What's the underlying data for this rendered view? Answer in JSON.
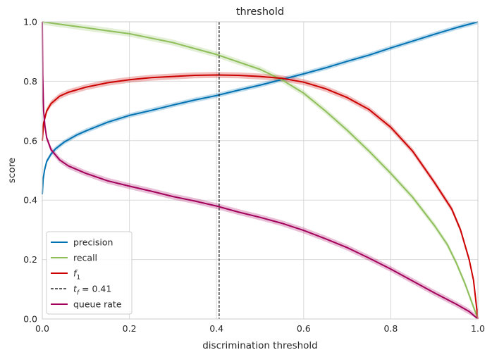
{
  "chart_data": {
    "type": "line",
    "title": "threshold",
    "xlabel": "discrimination threshold",
    "ylabel": "score",
    "xlim": [
      0,
      1
    ],
    "ylim": [
      0,
      1
    ],
    "x_ticks": [
      "0.0",
      "0.2",
      "0.4",
      "0.6",
      "0.8",
      "1.0"
    ],
    "y_ticks": [
      "0.0",
      "0.2",
      "0.4",
      "0.6",
      "0.8",
      "1.0"
    ],
    "grid": true,
    "legend_position": "lower-left",
    "threshold": {
      "label": "t_f = 0.41",
      "x": 0.406,
      "color": "#000000"
    },
    "series": [
      {
        "name": "precision",
        "color": "#0072b2",
        "band": 0.008,
        "x": [
          0,
          0.002,
          0.005,
          0.01,
          0.02,
          0.03,
          0.05,
          0.08,
          0.1,
          0.15,
          0.2,
          0.25,
          0.3,
          0.35,
          0.4,
          0.45,
          0.5,
          0.55,
          0.6,
          0.65,
          0.7,
          0.75,
          0.8,
          0.85,
          0.9,
          0.95,
          0.98,
          1.0
        ],
        "y": [
          0.42,
          0.47,
          0.5,
          0.53,
          0.555,
          0.572,
          0.595,
          0.62,
          0.633,
          0.662,
          0.685,
          0.702,
          0.72,
          0.737,
          0.752,
          0.77,
          0.787,
          0.806,
          0.825,
          0.845,
          0.867,
          0.888,
          0.912,
          0.935,
          0.958,
          0.98,
          0.992,
          1.0
        ]
      },
      {
        "name": "recall",
        "color": "#8fbf5a",
        "band": 0.01,
        "x": [
          0,
          0.05,
          0.1,
          0.15,
          0.2,
          0.25,
          0.3,
          0.35,
          0.4,
          0.45,
          0.5,
          0.55,
          0.6,
          0.65,
          0.7,
          0.75,
          0.8,
          0.85,
          0.9,
          0.93,
          0.95,
          0.97,
          0.99,
          1.0
        ],
        "y": [
          1.0,
          0.99,
          0.98,
          0.97,
          0.96,
          0.945,
          0.93,
          0.91,
          0.89,
          0.865,
          0.84,
          0.805,
          0.76,
          0.7,
          0.635,
          0.565,
          0.49,
          0.41,
          0.315,
          0.25,
          0.19,
          0.12,
          0.04,
          0.0
        ]
      },
      {
        "name": "f1",
        "label_main": "f",
        "label_sub": "1",
        "color": "#cc0000",
        "band": 0.01,
        "x": [
          0,
          0.003,
          0.01,
          0.02,
          0.04,
          0.06,
          0.1,
          0.15,
          0.2,
          0.25,
          0.3,
          0.35,
          0.4,
          0.45,
          0.5,
          0.55,
          0.6,
          0.65,
          0.7,
          0.75,
          0.8,
          0.85,
          0.9,
          0.94,
          0.96,
          0.98,
          0.99,
          1.0
        ],
        "y": [
          0.6,
          0.66,
          0.7,
          0.725,
          0.75,
          0.763,
          0.78,
          0.795,
          0.805,
          0.812,
          0.816,
          0.82,
          0.821,
          0.82,
          0.816,
          0.81,
          0.797,
          0.775,
          0.745,
          0.705,
          0.645,
          0.565,
          0.46,
          0.37,
          0.3,
          0.2,
          0.13,
          0.0
        ]
      },
      {
        "name": "t_f = 0.41",
        "label_pre": "t",
        "label_sub": "f",
        "label_post": " = 0.41",
        "color": "#000000",
        "dashed": true
      },
      {
        "name": "queue rate",
        "color": "#a3005c",
        "band": 0.01,
        "x": [
          0,
          0.001,
          0.003,
          0.006,
          0.01,
          0.02,
          0.04,
          0.06,
          0.1,
          0.15,
          0.2,
          0.25,
          0.3,
          0.35,
          0.4,
          0.45,
          0.5,
          0.55,
          0.6,
          0.65,
          0.7,
          0.75,
          0.8,
          0.85,
          0.9,
          0.95,
          0.98,
          1.0
        ],
        "y": [
          1.0,
          0.82,
          0.7,
          0.65,
          0.61,
          0.57,
          0.535,
          0.515,
          0.49,
          0.465,
          0.447,
          0.43,
          0.412,
          0.397,
          0.38,
          0.36,
          0.342,
          0.322,
          0.298,
          0.27,
          0.24,
          0.205,
          0.168,
          0.128,
          0.088,
          0.05,
          0.025,
          0.0
        ]
      }
    ]
  }
}
